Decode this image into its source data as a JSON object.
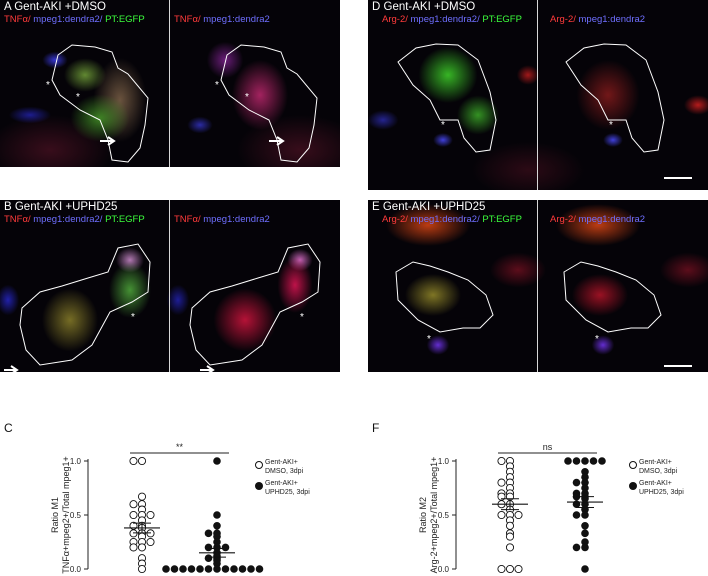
{
  "panels": {
    "A": {
      "title": "A Gent-AKI +DMSO",
      "left_stain": [
        "TNFα/",
        " mpeg1:dendra2/",
        " PT:EGFP"
      ],
      "right_stain": [
        "TNFα/",
        " mpeg1:dendra2"
      ]
    },
    "B": {
      "title": "B Gent-AKI +UPHD25",
      "left_stain": [
        "TNFα/",
        " mpeg1:dendra2/",
        " PT:EGFP"
      ],
      "right_stain": [
        "TNFα/",
        " mpeg1:dendra2"
      ]
    },
    "D": {
      "title": "D Gent-AKI +DMSO",
      "left_stain": [
        "Arg-2/",
        " mpeg1:dendra2/",
        " PT:EGFP"
      ],
      "right_stain": [
        "Arg-2/",
        " mpeg1:dendra2"
      ]
    },
    "E": {
      "title": "E Gent-AKI +UPHD25",
      "left_stain": [
        "Arg-2/",
        " mpeg1:dendra2/",
        " PT:EGFP"
      ],
      "right_stain": [
        "Arg-2/",
        " mpeg1:dendra2"
      ]
    },
    "asterisk": "*"
  },
  "chart_data": [
    {
      "type": "scatter",
      "panel_letter": "C",
      "ylabel_line1": "Ratio M1",
      "ylabel_line2": "TNFα+mpeg2+/Total mpeg1+",
      "ylim": [
        0,
        1.0
      ],
      "yticks": [
        "0.0",
        "0.5",
        "1.0"
      ],
      "significance": "**",
      "legend": [
        {
          "marker": "open",
          "line1": "Gent-AKI+",
          "line2": "DMSO, 3dpi"
        },
        {
          "marker": "filled",
          "line1": "Gent-AKI+",
          "line2": "UPHD25, 3dpi"
        }
      ],
      "series": [
        {
          "name": "Gent-AKI+ DMSO, 3dpi",
          "marker": "open",
          "mean": 0.38,
          "sem": 0.045,
          "values": [
            1.0,
            1.0,
            0.67,
            0.6,
            0.6,
            0.55,
            0.5,
            0.5,
            0.5,
            0.45,
            0.4,
            0.4,
            0.38,
            0.33,
            0.33,
            0.33,
            0.3,
            0.25,
            0.25,
            0.25,
            0.2,
            0.2,
            0.1,
            0.05,
            0.0
          ]
        },
        {
          "name": "Gent-AKI+ UPHD25, 3dpi",
          "marker": "filled",
          "mean": 0.15,
          "sem": 0.04,
          "values": [
            1.0,
            0.5,
            0.4,
            0.33,
            0.33,
            0.3,
            0.25,
            0.2,
            0.2,
            0.2,
            0.15,
            0.12,
            0.1,
            0.1,
            0.08,
            0.05,
            0.0,
            0.0,
            0.0,
            0.0,
            0.0,
            0.0,
            0.0,
            0.0,
            0.0,
            0.0,
            0.0,
            0.0
          ]
        }
      ]
    },
    {
      "type": "scatter",
      "panel_letter": "F",
      "ylabel_line1": "Ratio M2",
      "ylabel_line2": "Arg-2+mpeg2+/Total mpeg1+",
      "ylim": [
        0,
        1.0
      ],
      "yticks": [
        "0.0",
        "0.5",
        "1.0"
      ],
      "significance": "ns",
      "legend": [
        {
          "marker": "open",
          "line1": "Gent-AKI+",
          "line2": "DMSO, 3dpi"
        },
        {
          "marker": "filled",
          "line1": "Gent-AKI+",
          "line2": "UPHD25, 3dpi"
        }
      ],
      "series": [
        {
          "name": "Gent-AKI+ DMSO, 3dpi",
          "marker": "open",
          "mean": 0.6,
          "sem": 0.05,
          "values": [
            1.0,
            1.0,
            0.95,
            0.9,
            0.85,
            0.8,
            0.8,
            0.75,
            0.7,
            0.7,
            0.67,
            0.67,
            0.6,
            0.6,
            0.55,
            0.5,
            0.5,
            0.5,
            0.45,
            0.4,
            0.33,
            0.3,
            0.2,
            0.0,
            0.0,
            0.0
          ]
        },
        {
          "name": "Gent-AKI+ UPHD25, 3dpi",
          "marker": "filled",
          "mean": 0.62,
          "sem": 0.05,
          "values": [
            1.0,
            1.0,
            1.0,
            1.0,
            1.0,
            0.9,
            0.85,
            0.8,
            0.8,
            0.75,
            0.7,
            0.7,
            0.67,
            0.67,
            0.65,
            0.6,
            0.6,
            0.55,
            0.5,
            0.5,
            0.4,
            0.33,
            0.25,
            0.2,
            0.2,
            0.0
          ]
        }
      ]
    }
  ]
}
